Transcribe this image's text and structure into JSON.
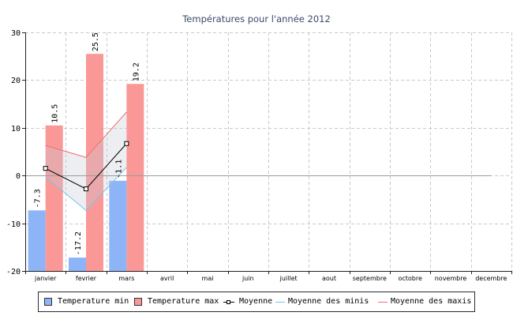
{
  "chart_data": {
    "type": "bar",
    "title": "Températures pour l'année 2012",
    "categories": [
      "janvier",
      "fevrier",
      "mars",
      "avril",
      "mai",
      "juin",
      "juillet",
      "aout",
      "septembre",
      "octobre",
      "novembre",
      "decembre"
    ],
    "ylim": [
      -20,
      30
    ],
    "yticks": [
      -20,
      -10,
      0,
      10,
      20,
      30
    ],
    "grid": true,
    "legend": "bottom",
    "show_values": true,
    "series": [
      {
        "name": "Temperature min",
        "type": "bar",
        "color": "#8db4f7",
        "values": [
          -7.3,
          -17.2,
          -1.1,
          null,
          null,
          null,
          null,
          null,
          null,
          null,
          null,
          null
        ]
      },
      {
        "name": "Temperature max",
        "type": "bar",
        "color": "#fa9898",
        "values": [
          10.5,
          25.5,
          19.2,
          null,
          null,
          null,
          null,
          null,
          null,
          null,
          null,
          null
        ]
      },
      {
        "name": "Moyenne",
        "type": "line",
        "marker": "square",
        "color": "#000000",
        "values": [
          1.5,
          -2.8,
          6.7,
          null,
          null,
          null,
          null,
          null,
          null,
          null,
          null,
          null
        ]
      },
      {
        "name": "Moyenne des minis",
        "type": "line",
        "color": "#76c7e4",
        "values": [
          -0.3,
          -7.3,
          1.7,
          null,
          null,
          null,
          null,
          null,
          null,
          null,
          null,
          null
        ]
      },
      {
        "name": "Moyenne des maxis",
        "type": "line",
        "color": "#f07070",
        "values": [
          6.3,
          3.8,
          13.3,
          null,
          null,
          null,
          null,
          null,
          null,
          null,
          null,
          null
        ]
      }
    ],
    "colors": {
      "title": "#3b4a6b",
      "band": "#c8ccd4",
      "grid": "#c9c9c9"
    }
  }
}
